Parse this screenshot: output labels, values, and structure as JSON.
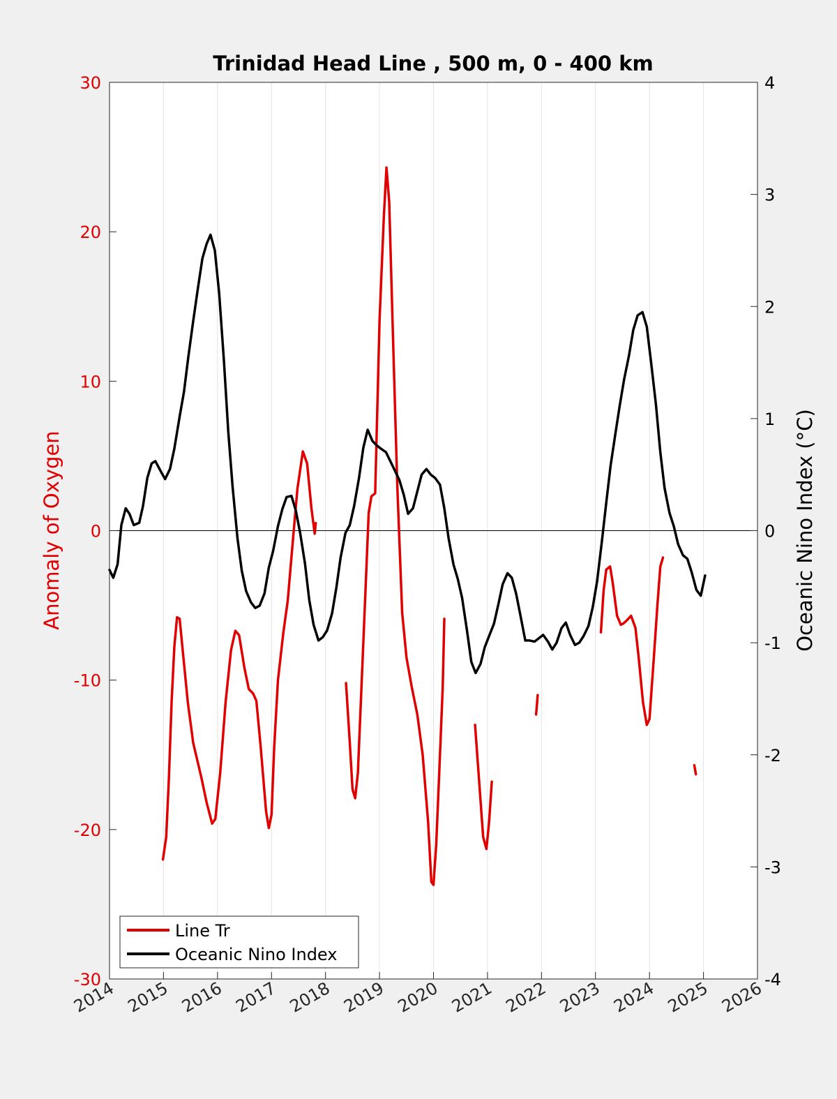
{
  "chart_data": {
    "type": "line",
    "title": "Trinidad Head Line , 500 m, 0 - 400 km",
    "xlim": [
      2014,
      2026
    ],
    "x_ticks": [
      2014,
      2015,
      2016,
      2017,
      2018,
      2019,
      2020,
      2021,
      2022,
      2023,
      2024,
      2025,
      2026
    ],
    "left_axis": {
      "label": "Anomaly of Oxygen",
      "ylim": [
        -30,
        30
      ],
      "ticks": [
        30,
        20,
        10,
        0,
        -10,
        -20,
        -30
      ],
      "color": "#e00000"
    },
    "right_axis": {
      "label": "Oceanic Nino Index (°C)",
      "ylim": [
        -4,
        4
      ],
      "ticks": [
        4,
        3,
        2,
        1,
        0,
        -1,
        -2,
        -3,
        -4
      ],
      "color": "#000000"
    },
    "grid": "vertical",
    "zero_line": true,
    "legend": {
      "position": "bottom-left"
    },
    "series": [
      {
        "name": "Line Tr",
        "axis": "left",
        "color": "#e00000",
        "segments": [
          [
            [
              2014.99,
              -22.0
            ],
            [
              2015.05,
              -20.5
            ],
            [
              2015.1,
              -16.5
            ],
            [
              2015.15,
              -11.5
            ],
            [
              2015.2,
              -7.8
            ],
            [
              2015.25,
              -5.8
            ],
            [
              2015.3,
              -5.9
            ],
            [
              2015.35,
              -7.8
            ],
            [
              2015.45,
              -11.5
            ],
            [
              2015.55,
              -14.2
            ],
            [
              2015.7,
              -16.5
            ],
            [
              2015.8,
              -18.2
            ],
            [
              2015.9,
              -19.6
            ],
            [
              2015.96,
              -19.3
            ],
            [
              2016.05,
              -16.2
            ],
            [
              2016.15,
              -11.5
            ],
            [
              2016.25,
              -8.0
            ],
            [
              2016.33,
              -6.7
            ],
            [
              2016.4,
              -7.0
            ],
            [
              2016.5,
              -9.2
            ],
            [
              2016.58,
              -10.6
            ],
            [
              2016.66,
              -10.9
            ],
            [
              2016.72,
              -11.4
            ],
            [
              2016.8,
              -14.5
            ],
            [
              2016.9,
              -18.8
            ],
            [
              2016.95,
              -19.9
            ],
            [
              2017.0,
              -19.0
            ],
            [
              2017.05,
              -14.5
            ],
            [
              2017.12,
              -10.0
            ],
            [
              2017.22,
              -6.8
            ],
            [
              2017.3,
              -4.7
            ],
            [
              2017.4,
              -0.5
            ],
            [
              2017.48,
              2.8
            ],
            [
              2017.58,
              5.3
            ],
            [
              2017.66,
              4.5
            ],
            [
              2017.74,
              1.5
            ],
            [
              2017.8,
              -0.2
            ],
            [
              2017.82,
              0.5
            ]
          ],
          [
            [
              2018.38,
              -10.2
            ],
            [
              2018.45,
              -14.2
            ],
            [
              2018.5,
              -17.3
            ],
            [
              2018.55,
              -17.9
            ],
            [
              2018.6,
              -16.2
            ],
            [
              2018.7,
              -7.5
            ],
            [
              2018.8,
              1.2
            ],
            [
              2018.85,
              2.3
            ],
            [
              2018.92,
              2.5
            ],
            [
              2019.0,
              14.0
            ],
            [
              2019.08,
              21.0
            ],
            [
              2019.13,
              24.3
            ],
            [
              2019.18,
              22.0
            ],
            [
              2019.25,
              13.0
            ],
            [
              2019.33,
              3.0
            ],
            [
              2019.42,
              -5.5
            ],
            [
              2019.5,
              -8.5
            ],
            [
              2019.6,
              -10.5
            ],
            [
              2019.7,
              -12.3
            ],
            [
              2019.8,
              -15.0
            ],
            [
              2019.9,
              -19.5
            ],
            [
              2019.96,
              -23.5
            ],
            [
              2020.0,
              -23.7
            ],
            [
              2020.05,
              -21.0
            ],
            [
              2020.1,
              -16.8
            ],
            [
              2020.17,
              -10.5
            ],
            [
              2020.2,
              -5.9
            ]
          ],
          [
            [
              2020.77,
              -13.0
            ],
            [
              2020.85,
              -17.0
            ],
            [
              2020.92,
              -20.5
            ],
            [
              2020.98,
              -21.3
            ],
            [
              2021.03,
              -19.5
            ],
            [
              2021.08,
              -16.8
            ]
          ],
          [
            [
              2021.9,
              -12.3
            ],
            [
              2021.93,
              -11.0
            ]
          ],
          [
            [
              2023.1,
              -6.8
            ],
            [
              2023.15,
              -4.0
            ],
            [
              2023.2,
              -2.6
            ],
            [
              2023.27,
              -2.4
            ],
            [
              2023.32,
              -3.5
            ],
            [
              2023.4,
              -5.7
            ],
            [
              2023.47,
              -6.3
            ],
            [
              2023.52,
              -6.2
            ],
            [
              2023.58,
              -6.0
            ],
            [
              2023.66,
              -5.7
            ],
            [
              2023.74,
              -6.5
            ],
            [
              2023.8,
              -8.5
            ],
            [
              2023.88,
              -11.5
            ],
            [
              2023.95,
              -13.0
            ],
            [
              2024.0,
              -12.6
            ],
            [
              2024.08,
              -8.5
            ],
            [
              2024.15,
              -4.8
            ],
            [
              2024.2,
              -2.4
            ],
            [
              2024.25,
              -1.8
            ]
          ],
          [
            [
              2024.83,
              -15.7
            ],
            [
              2024.86,
              -16.3
            ]
          ]
        ]
      },
      {
        "name": "Oceanic Nino Index",
        "axis": "right",
        "color": "#000000",
        "values": [
          [
            2014.0,
            -0.35
          ],
          [
            2014.07,
            -0.42
          ],
          [
            2014.15,
            -0.3
          ],
          [
            2014.22,
            0.05
          ],
          [
            2014.3,
            0.2
          ],
          [
            2014.37,
            0.15
          ],
          [
            2014.45,
            0.05
          ],
          [
            2014.55,
            0.07
          ],
          [
            2014.62,
            0.22
          ],
          [
            2014.7,
            0.47
          ],
          [
            2014.78,
            0.6
          ],
          [
            2014.85,
            0.62
          ],
          [
            2014.95,
            0.53
          ],
          [
            2015.03,
            0.46
          ],
          [
            2015.12,
            0.55
          ],
          [
            2015.2,
            0.73
          ],
          [
            2015.3,
            1.02
          ],
          [
            2015.38,
            1.24
          ],
          [
            2015.46,
            1.55
          ],
          [
            2015.55,
            1.87
          ],
          [
            2015.63,
            2.14
          ],
          [
            2015.72,
            2.43
          ],
          [
            2015.8,
            2.56
          ],
          [
            2015.87,
            2.64
          ],
          [
            2015.95,
            2.5
          ],
          [
            2016.03,
            2.12
          ],
          [
            2016.12,
            1.51
          ],
          [
            2016.2,
            0.88
          ],
          [
            2016.28,
            0.39
          ],
          [
            2016.37,
            -0.07
          ],
          [
            2016.45,
            -0.36
          ],
          [
            2016.53,
            -0.54
          ],
          [
            2016.62,
            -0.64
          ],
          [
            2016.7,
            -0.69
          ],
          [
            2016.78,
            -0.67
          ],
          [
            2016.87,
            -0.56
          ],
          [
            2016.95,
            -0.33
          ],
          [
            2017.03,
            -0.18
          ],
          [
            2017.12,
            0.04
          ],
          [
            2017.2,
            0.19
          ],
          [
            2017.28,
            0.3
          ],
          [
            2017.37,
            0.31
          ],
          [
            2017.45,
            0.18
          ],
          [
            2017.53,
            -0.02
          ],
          [
            2017.62,
            -0.29
          ],
          [
            2017.7,
            -0.62
          ],
          [
            2017.78,
            -0.84
          ],
          [
            2017.87,
            -0.98
          ],
          [
            2017.95,
            -0.95
          ],
          [
            2018.03,
            -0.89
          ],
          [
            2018.12,
            -0.74
          ],
          [
            2018.2,
            -0.51
          ],
          [
            2018.28,
            -0.24
          ],
          [
            2018.37,
            -0.02
          ],
          [
            2018.45,
            0.05
          ],
          [
            2018.53,
            0.22
          ],
          [
            2018.62,
            0.47
          ],
          [
            2018.7,
            0.74
          ],
          [
            2018.78,
            0.9
          ],
          [
            2018.87,
            0.8
          ],
          [
            2018.95,
            0.76
          ],
          [
            2019.03,
            0.73
          ],
          [
            2019.12,
            0.7
          ],
          [
            2019.2,
            0.62
          ],
          [
            2019.28,
            0.54
          ],
          [
            2019.37,
            0.45
          ],
          [
            2019.45,
            0.32
          ],
          [
            2019.53,
            0.15
          ],
          [
            2019.62,
            0.2
          ],
          [
            2019.7,
            0.35
          ],
          [
            2019.78,
            0.5
          ],
          [
            2019.87,
            0.55
          ],
          [
            2019.95,
            0.5
          ],
          [
            2020.03,
            0.47
          ],
          [
            2020.12,
            0.41
          ],
          [
            2020.2,
            0.2
          ],
          [
            2020.28,
            -0.07
          ],
          [
            2020.37,
            -0.3
          ],
          [
            2020.45,
            -0.43
          ],
          [
            2020.53,
            -0.6
          ],
          [
            2020.62,
            -0.89
          ],
          [
            2020.7,
            -1.17
          ],
          [
            2020.78,
            -1.27
          ],
          [
            2020.87,
            -1.19
          ],
          [
            2020.95,
            -1.04
          ],
          [
            2021.03,
            -0.94
          ],
          [
            2021.12,
            -0.83
          ],
          [
            2021.2,
            -0.66
          ],
          [
            2021.28,
            -0.48
          ],
          [
            2021.37,
            -0.38
          ],
          [
            2021.45,
            -0.42
          ],
          [
            2021.53,
            -0.56
          ],
          [
            2021.62,
            -0.78
          ],
          [
            2021.7,
            -0.98
          ],
          [
            2021.78,
            -0.98
          ],
          [
            2021.87,
            -0.99
          ],
          [
            2021.95,
            -0.96
          ],
          [
            2022.03,
            -0.93
          ],
          [
            2022.12,
            -0.99
          ],
          [
            2022.2,
            -1.06
          ],
          [
            2022.28,
            -1.0
          ],
          [
            2022.37,
            -0.87
          ],
          [
            2022.45,
            -0.82
          ],
          [
            2022.53,
            -0.93
          ],
          [
            2022.62,
            -1.02
          ],
          [
            2022.7,
            -1.0
          ],
          [
            2022.78,
            -0.94
          ],
          [
            2022.87,
            -0.85
          ],
          [
            2022.95,
            -0.68
          ],
          [
            2023.03,
            -0.45
          ],
          [
            2023.12,
            -0.09
          ],
          [
            2023.2,
            0.25
          ],
          [
            2023.28,
            0.58
          ],
          [
            2023.37,
            0.87
          ],
          [
            2023.45,
            1.12
          ],
          [
            2023.53,
            1.35
          ],
          [
            2023.62,
            1.56
          ],
          [
            2023.7,
            1.79
          ],
          [
            2023.78,
            1.92
          ],
          [
            2023.87,
            1.95
          ],
          [
            2023.95,
            1.82
          ],
          [
            2024.03,
            1.5
          ],
          [
            2024.12,
            1.12
          ],
          [
            2024.2,
            0.7
          ],
          [
            2024.28,
            0.38
          ],
          [
            2024.37,
            0.16
          ],
          [
            2024.45,
            0.04
          ],
          [
            2024.53,
            -0.12
          ],
          [
            2024.62,
            -0.22
          ],
          [
            2024.7,
            -0.25
          ],
          [
            2024.78,
            -0.37
          ],
          [
            2024.87,
            -0.53
          ],
          [
            2024.95,
            -0.58
          ],
          [
            2025.03,
            -0.4
          ]
        ]
      }
    ]
  }
}
